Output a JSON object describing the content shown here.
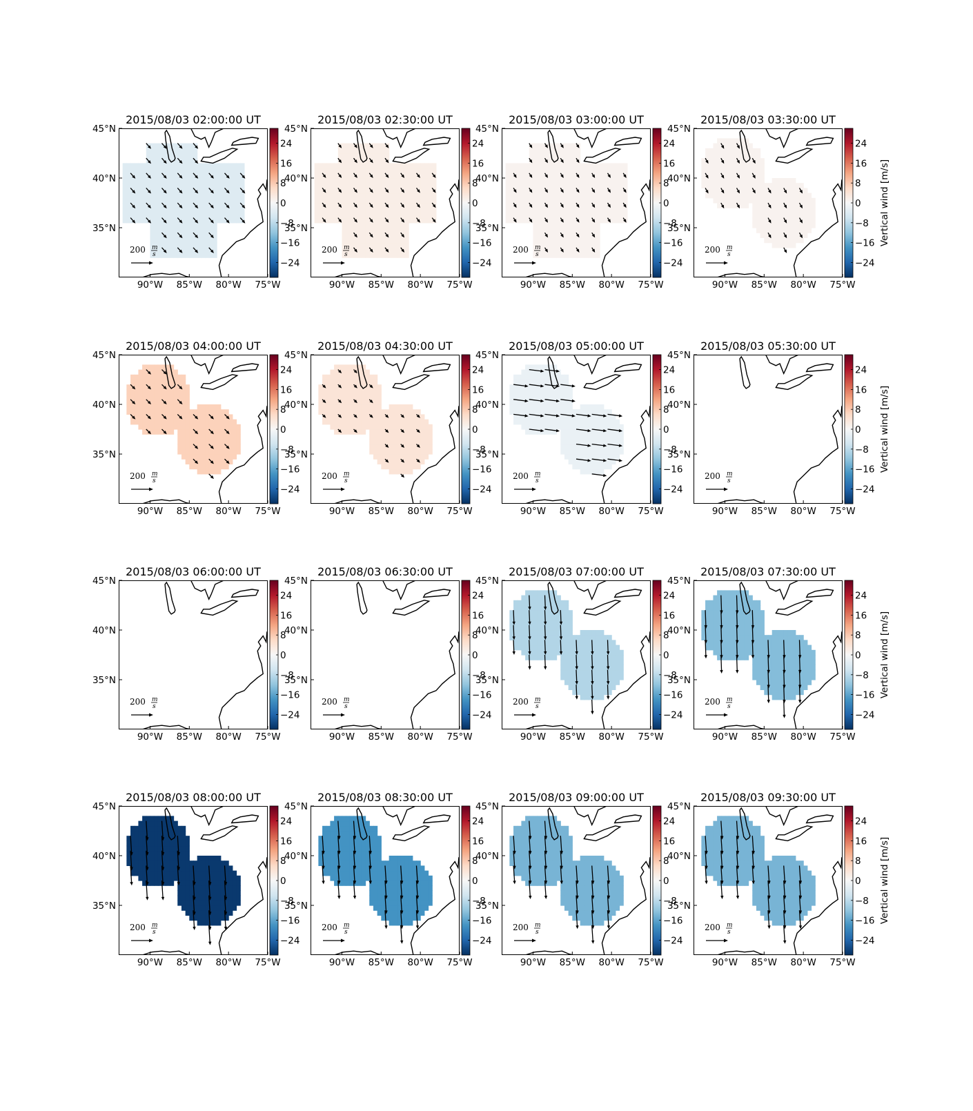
{
  "chart_data": {
    "type": "map-grid",
    "layout": {
      "rows": 4,
      "cols": 4
    },
    "map": {
      "lon_range": [
        -94,
        -75
      ],
      "lat_range": [
        30,
        45
      ],
      "lon_ticks": [
        -90,
        -85,
        -80,
        -75
      ],
      "lat_ticks": [
        35,
        40,
        45
      ],
      "lon_tick_labels": [
        "90°W",
        "85°W",
        "80°W",
        "75°W"
      ],
      "lat_tick_labels": [
        "35°N",
        "40°N",
        "45°N"
      ]
    },
    "colorbar": {
      "label": "Vertical wind [m/s]",
      "range": [
        -30,
        30
      ],
      "ticks": [
        -24,
        -16,
        -8,
        0,
        8,
        16,
        24
      ],
      "tick_labels": [
        "−24",
        "−16",
        "−8",
        "0",
        "8",
        "16",
        "24"
      ],
      "colormap": "RdBu_r"
    },
    "quiver_key": {
      "value": 200,
      "unit_num": "m",
      "unit_den": "s"
    },
    "arrow_color": "#000000",
    "coast_color": "#000000",
    "panels": [
      {
        "title": "2015/08/03 02:00:00 UT",
        "vertical_wind": -4,
        "wind_u": 40,
        "wind_v": -45,
        "region": "broad"
      },
      {
        "title": "2015/08/03 02:30:00 UT",
        "vertical_wind": 2,
        "wind_u": 30,
        "wind_v": -40,
        "region": "broad"
      },
      {
        "title": "2015/08/03 03:00:00 UT",
        "vertical_wind": 1,
        "wind_u": 25,
        "wind_v": -40,
        "region": "broad"
      },
      {
        "title": "2015/08/03 03:30:00 UT",
        "vertical_wind": 1,
        "wind_u": 25,
        "wind_v": -45,
        "region": "lobed"
      },
      {
        "title": "2015/08/03 04:00:00 UT",
        "vertical_wind": 7,
        "wind_u": 40,
        "wind_v": -40,
        "region": "lobed"
      },
      {
        "title": "2015/08/03 04:30:00 UT",
        "vertical_wind": 4,
        "wind_u": 30,
        "wind_v": -30,
        "region": "lobed"
      },
      {
        "title": "2015/08/03 05:00:00 UT",
        "vertical_wind": -2,
        "wind_u": 120,
        "wind_v": -15,
        "region": "lobed"
      },
      {
        "title": "2015/08/03 05:30:00 UT",
        "vertical_wind": null,
        "wind_u": 0,
        "wind_v": 0,
        "region": "none"
      },
      {
        "title": "2015/08/03 06:00:00 UT",
        "vertical_wind": null,
        "wind_u": 0,
        "wind_v": 0,
        "region": "none"
      },
      {
        "title": "2015/08/03 06:30:00 UT",
        "vertical_wind": null,
        "wind_u": 0,
        "wind_v": 0,
        "region": "none"
      },
      {
        "title": "2015/08/03 07:00:00 UT",
        "vertical_wind": -9,
        "wind_u": 5,
        "wind_v": -120,
        "region": "lobed"
      },
      {
        "title": "2015/08/03 07:30:00 UT",
        "vertical_wind": -13,
        "wind_u": 5,
        "wind_v": -150,
        "region": "lobed"
      },
      {
        "title": "2015/08/03 08:00:00 UT",
        "vertical_wind": -29,
        "wind_u": 10,
        "wind_v": -160,
        "region": "lobed"
      },
      {
        "title": "2015/08/03 08:30:00 UT",
        "vertical_wind": -18,
        "wind_u": 10,
        "wind_v": -150,
        "region": "lobed"
      },
      {
        "title": "2015/08/03 09:00:00 UT",
        "vertical_wind": -14,
        "wind_u": 10,
        "wind_v": -150,
        "region": "lobed"
      },
      {
        "title": "2015/08/03 09:30:00 UT",
        "vertical_wind": -14,
        "wind_u": 10,
        "wind_v": -150,
        "region": "lobed"
      }
    ]
  }
}
